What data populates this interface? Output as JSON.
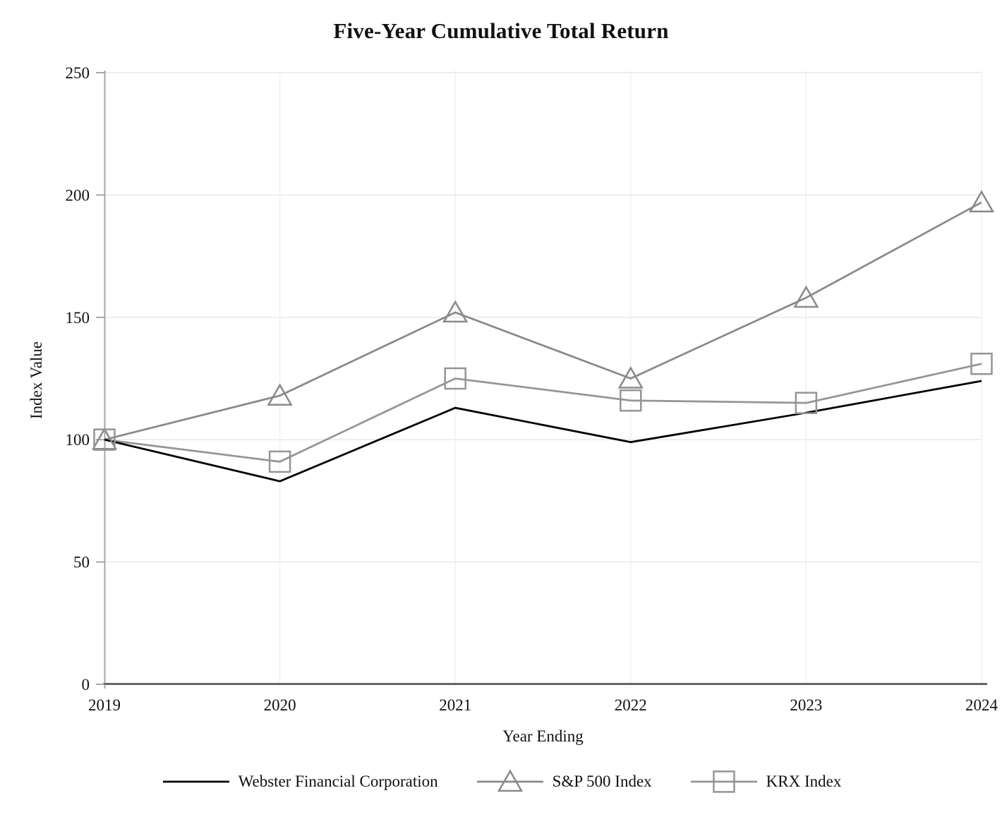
{
  "chart_data": {
    "type": "line",
    "title": "Five-Year Cumulative Total Return",
    "xlabel": "Year Ending",
    "ylabel": "Index Value",
    "categories": [
      "2019",
      "2020",
      "2021",
      "2022",
      "2023",
      "2024"
    ],
    "series": [
      {
        "name": "Webster Financial Corporation",
        "marker": "none",
        "color": "#000000",
        "values": [
          100,
          83,
          113,
          99,
          111,
          124
        ]
      },
      {
        "name": "S&P 500 Index",
        "marker": "triangle",
        "color": "#8a8a8a",
        "values": [
          100,
          118,
          152,
          125,
          158,
          197
        ]
      },
      {
        "name": "KRX Index",
        "marker": "square",
        "color": "#959595",
        "values": [
          100,
          91,
          125,
          116,
          115,
          131
        ]
      }
    ],
    "ylim": [
      0,
      250
    ],
    "yticks": [
      0,
      50,
      100,
      150,
      200,
      250
    ],
    "grid": true,
    "legend_position": "bottom",
    "colors": {
      "x_axis_line": "#666666",
      "y_axis_line": "#a6a6a6",
      "gridline_h": "#e9e9e9",
      "gridline_v": "#f0f0f0",
      "text": "#111111"
    }
  }
}
